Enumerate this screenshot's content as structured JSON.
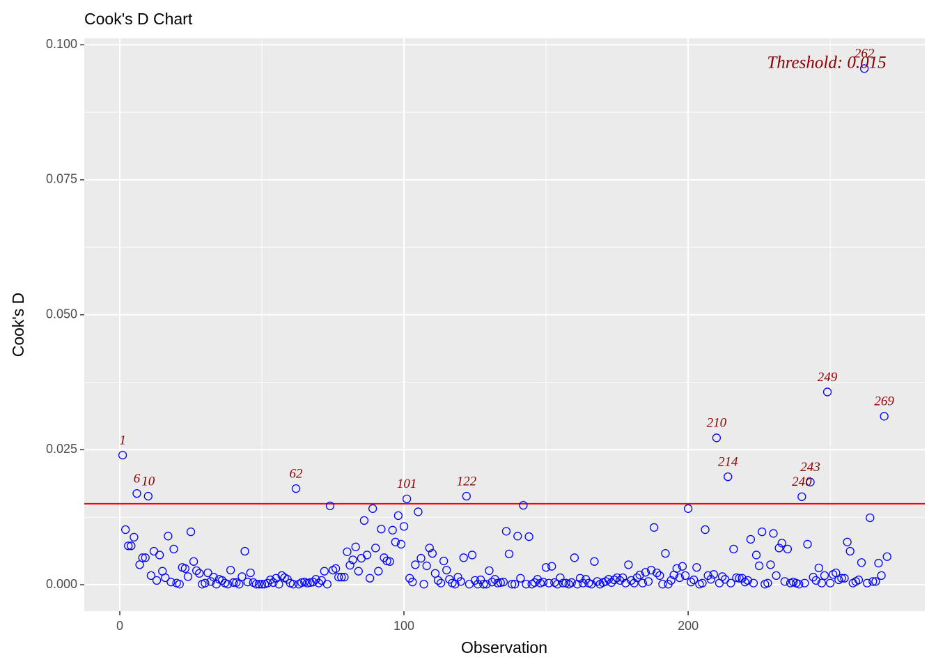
{
  "chart_data": {
    "type": "scatter",
    "title": "Cook's D Chart",
    "x_label": "Observation",
    "y_label": "Cook's D",
    "xlim": [
      -12.5,
      283.3
    ],
    "ylim": [
      -0.0049,
      0.1012
    ],
    "xticks": [
      0,
      100,
      200
    ],
    "x_minor_ticks": [
      50,
      150,
      250
    ],
    "yticks": [
      {
        "value": 0,
        "label": "0.000"
      },
      {
        "value": 0.025,
        "label": "0.025"
      },
      {
        "value": 0.05,
        "label": "0.050"
      },
      {
        "value": 0.075,
        "label": "0.075"
      },
      {
        "value": 0.1,
        "label": "0.100"
      }
    ],
    "y_minor_ticks": [
      0.0125,
      0.0375,
      0.0625,
      0.0875
    ],
    "grid": true,
    "color": "#0000ff",
    "threshold": 0.015,
    "threshold_color": "#ff0000",
    "threshold_label": "Threshold: 0.015",
    "label_color": "#8b0000",
    "x": [
      1,
      2,
      3,
      4,
      5,
      6,
      7,
      8,
      9,
      10,
      11,
      12,
      13,
      14,
      15,
      16,
      17,
      18,
      19,
      20,
      21,
      22,
      23,
      24,
      25,
      26,
      27,
      28,
      29,
      30,
      31,
      32,
      33,
      34,
      35,
      36,
      37,
      38,
      39,
      40,
      41,
      42,
      43,
      44,
      45,
      46,
      47,
      48,
      49,
      50,
      51,
      52,
      53,
      54,
      55,
      56,
      57,
      58,
      59,
      60,
      61,
      62,
      63,
      64,
      65,
      66,
      67,
      68,
      69,
      70,
      71,
      72,
      73,
      74,
      75,
      76,
      77,
      78,
      79,
      80,
      81,
      82,
      83,
      84,
      85,
      86,
      87,
      88,
      89,
      90,
      91,
      92,
      93,
      94,
      95,
      96,
      97,
      98,
      99,
      100,
      101,
      102,
      103,
      104,
      105,
      106,
      107,
      108,
      109,
      110,
      111,
      112,
      113,
      114,
      115,
      116,
      117,
      118,
      119,
      120,
      121,
      122,
      123,
      124,
      125,
      126,
      127,
      128,
      129,
      130,
      131,
      132,
      133,
      134,
      135,
      136,
      137,
      138,
      139,
      140,
      141,
      142,
      143,
      144,
      145,
      146,
      147,
      148,
      149,
      150,
      151,
      152,
      153,
      154,
      155,
      156,
      157,
      158,
      159,
      160,
      161,
      162,
      163,
      164,
      165,
      166,
      167,
      168,
      169,
      170,
      171,
      172,
      173,
      174,
      175,
      176,
      177,
      178,
      179,
      180,
      181,
      182,
      183,
      184,
      185,
      186,
      187,
      188,
      189,
      190,
      191,
      192,
      193,
      194,
      195,
      196,
      197,
      198,
      199,
      200,
      201,
      202,
      203,
      204,
      205,
      206,
      207,
      208,
      209,
      210,
      211,
      212,
      213,
      214,
      215,
      216,
      217,
      218,
      219,
      220,
      221,
      222,
      223,
      224,
      225,
      226,
      227,
      228,
      229,
      230,
      231,
      232,
      233,
      234,
      235,
      236,
      237,
      238,
      239,
      240,
      241,
      242,
      243,
      244,
      245,
      246,
      247,
      248,
      249,
      250,
      251,
      252,
      253,
      254,
      255,
      256,
      257,
      258,
      259,
      260,
      261,
      262,
      263,
      264,
      265,
      266,
      267,
      268,
      269,
      270
    ],
    "values": [
      0.024,
      0.0102,
      0.0072,
      0.0072,
      0.0088,
      0.0169,
      0.0037,
      0.005,
      0.005,
      0.0164,
      0.0017,
      0.0062,
      0.0008,
      0.0055,
      0.0025,
      0.0013,
      0.009,
      0.0005,
      0.0066,
      0.0003,
      0.0001,
      0.0032,
      0.003,
      0.0015,
      0.0098,
      0.0043,
      0.0026,
      0.0021,
      0.0001,
      0.0003,
      0.0022,
      0.0006,
      0.0014,
      0.0001,
      0.001,
      0.0008,
      0.0003,
      0.0001,
      0.0027,
      0.0004,
      0.0004,
      0.0001,
      0.0015,
      0.0062,
      0.0005,
      0.0022,
      0.0004,
      0.0001,
      0.0001,
      0.0001,
      0.0001,
      0.0003,
      0.0009,
      0.0004,
      0.0012,
      0.0001,
      0.0017,
      0.0013,
      0.001,
      0.0003,
      0.0001,
      0.0178,
      0.0001,
      0.0004,
      0.0005,
      0.0003,
      0.0004,
      0.0005,
      0.001,
      0.0003,
      0.0008,
      0.0025,
      0.0001,
      0.0146,
      0.0027,
      0.003,
      0.0014,
      0.0014,
      0.0014,
      0.0061,
      0.0036,
      0.0046,
      0.007,
      0.0025,
      0.0049,
      0.0119,
      0.0055,
      0.0012,
      0.0141,
      0.0068,
      0.0025,
      0.0103,
      0.005,
      0.0044,
      0.0043,
      0.0101,
      0.0079,
      0.0128,
      0.0075,
      0.0108,
      0.0159,
      0.0012,
      0.0005,
      0.0037,
      0.0135,
      0.0049,
      0.0001,
      0.0035,
      0.0068,
      0.0058,
      0.0021,
      0.0008,
      0.0003,
      0.0044,
      0.0027,
      0.001,
      0.0003,
      0.0001,
      0.0014,
      0.0006,
      0.005,
      0.0164,
      0.0001,
      0.0055,
      0.0008,
      0.0001,
      0.0009,
      0.0001,
      0.0001,
      0.0026,
      0.0005,
      0.001,
      0.0003,
      0.0004,
      0.0005,
      0.0099,
      0.0057,
      0.0001,
      0.0001,
      0.009,
      0.0012,
      0.0147,
      0.0001,
      0.0089,
      0.0001,
      0.0004,
      0.001,
      0.0003,
      0.0005,
      0.0032,
      0.0003,
      0.0034,
      0.0004,
      0.0001,
      0.0013,
      0.0003,
      0.0003,
      0.0001,
      0.0004,
      0.005,
      0.0001,
      0.0012,
      0.0003,
      0.001,
      0.0003,
      0.0001,
      0.0043,
      0.0006,
      0.0001,
      0.0004,
      0.0006,
      0.001,
      0.0004,
      0.0009,
      0.0013,
      0.0008,
      0.0013,
      0.0003,
      0.0037,
      0.0008,
      0.0003,
      0.0013,
      0.0018,
      0.0003,
      0.0023,
      0.0006,
      0.0027,
      0.0106,
      0.0022,
      0.0017,
      0.0001,
      0.0058,
      0.0001,
      0.0008,
      0.0018,
      0.003,
      0.0013,
      0.0034,
      0.0017,
      0.0141,
      0.0005,
      0.0009,
      0.0032,
      0.0001,
      0.0003,
      0.0102,
      0.0017,
      0.001,
      0.0019,
      0.0272,
      0.0003,
      0.0015,
      0.001,
      0.02,
      0.0003,
      0.0066,
      0.0013,
      0.0012,
      0.0012,
      0.0005,
      0.0008,
      0.0084,
      0.0003,
      0.0055,
      0.0035,
      0.0098,
      0.0001,
      0.0003,
      0.0037,
      0.0095,
      0.0017,
      0.0068,
      0.0077,
      0.0006,
      0.0066,
      0.0003,
      0.0005,
      0.0003,
      0.0001,
      0.0163,
      0.0003,
      0.0075,
      0.019,
      0.0014,
      0.0008,
      0.0031,
      0.0003,
      0.0017,
      0.0357,
      0.0003,
      0.0019,
      0.0022,
      0.0009,
      0.0012,
      0.0012,
      0.0079,
      0.0062,
      0.0003,
      0.0006,
      0.0009,
      0.0041,
      0.0956,
      0.0003,
      0.0124,
      0.0006,
      0.0006,
      0.004,
      0.0017,
      0.0312,
      0.0052
    ],
    "point_labels": [
      {
        "x": 1,
        "label": "1"
      },
      {
        "x": 6,
        "label": "6"
      },
      {
        "x": 10,
        "label": "10"
      },
      {
        "x": 62,
        "label": "62"
      },
      {
        "x": 101,
        "label": "101"
      },
      {
        "x": 122,
        "label": "122"
      },
      {
        "x": 210,
        "label": "210"
      },
      {
        "x": 214,
        "label": "214"
      },
      {
        "x": 240,
        "label": "240"
      },
      {
        "x": 243,
        "label": "243"
      },
      {
        "x": 249,
        "label": "249"
      },
      {
        "x": 262,
        "label": "262"
      },
      {
        "x": 269,
        "label": "269"
      }
    ]
  }
}
